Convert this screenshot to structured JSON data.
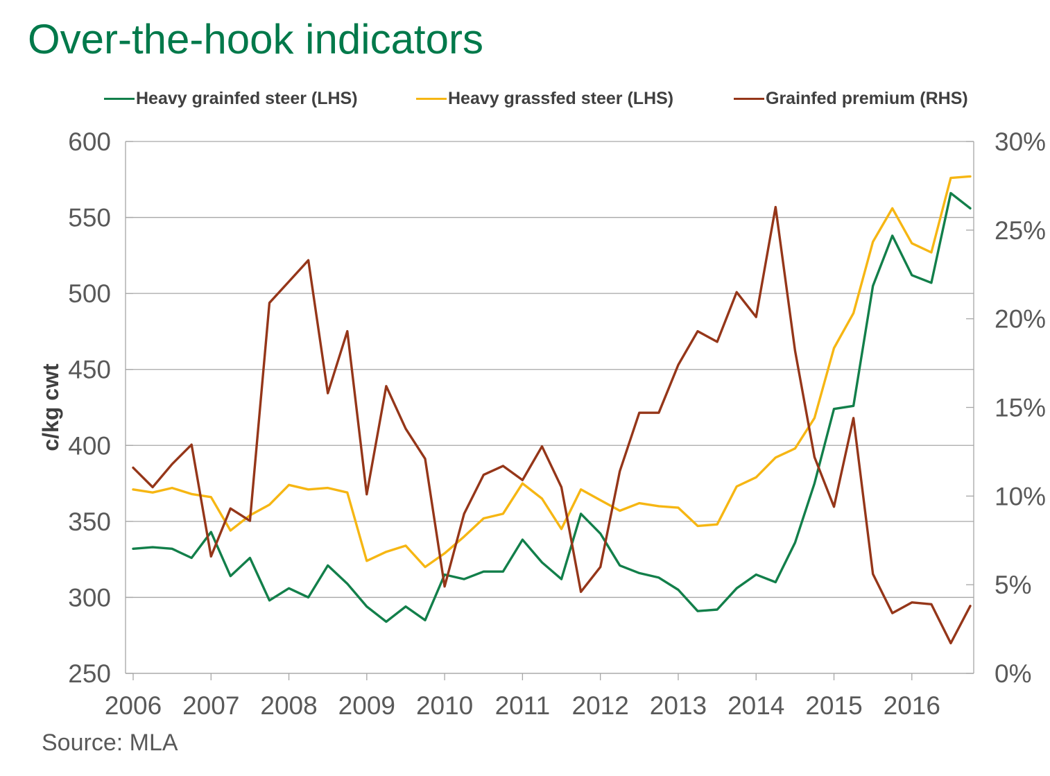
{
  "title": "Over-the-hook indicators",
  "source": "Source: MLA",
  "colors": {
    "title": "#00794a",
    "grid": "#a6a6a6",
    "text": "#595959"
  },
  "chart_data": {
    "type": "line",
    "title": "Over-the-hook indicators",
    "ylabel": "c/kg cwt",
    "y2label": "",
    "ylim": [
      250,
      600
    ],
    "y2lim": [
      0,
      30
    ],
    "yticks": [
      "250",
      "300",
      "350",
      "400",
      "450",
      "500",
      "550",
      "600"
    ],
    "y2ticks": [
      "0%",
      "5%",
      "10%",
      "15%",
      "20%",
      "25%",
      "30%"
    ],
    "xlim": [
      2006,
      2016.75
    ],
    "xticks": [
      "2006",
      "2007",
      "2008",
      "2009",
      "2010",
      "2011",
      "2012",
      "2013",
      "2014",
      "2015",
      "2016"
    ],
    "grid": true,
    "legend_position": "top",
    "x": [
      2006.0,
      2006.25,
      2006.5,
      2006.75,
      2007.0,
      2007.25,
      2007.5,
      2007.75,
      2008.0,
      2008.25,
      2008.5,
      2008.75,
      2009.0,
      2009.25,
      2009.5,
      2009.75,
      2010.0,
      2010.25,
      2010.5,
      2010.75,
      2011.0,
      2011.25,
      2011.5,
      2011.75,
      2012.0,
      2012.25,
      2012.5,
      2012.75,
      2013.0,
      2013.25,
      2013.5,
      2013.75,
      2014.0,
      2014.25,
      2014.5,
      2014.75,
      2015.0,
      2015.25,
      2015.5,
      2015.75,
      2016.0,
      2016.25,
      2016.5,
      2016.75
    ],
    "series": [
      {
        "name": "Heavy grainfed steer (LHS)",
        "axis": "left",
        "color": "#127f4a",
        "values": [
          332,
          333,
          332,
          326,
          343,
          314,
          326,
          298,
          306,
          300,
          321,
          309,
          294,
          284,
          294,
          285,
          315,
          312,
          317,
          317,
          338,
          323,
          312,
          355,
          342,
          321,
          316,
          313,
          305,
          291,
          292,
          306,
          315,
          310,
          336,
          375,
          424,
          426,
          505,
          538,
          512,
          507,
          566,
          556
        ]
      },
      {
        "name": "Heavy grassfed steer (LHS)",
        "axis": "left",
        "color": "#f6b613",
        "values": [
          371,
          369,
          372,
          368,
          366,
          344,
          354,
          361,
          374,
          371,
          372,
          369,
          324,
          330,
          334,
          320,
          329,
          340,
          352,
          355,
          375,
          365,
          345,
          371,
          364,
          357,
          362,
          360,
          359,
          347,
          348,
          373,
          379,
          392,
          398,
          418,
          464,
          487,
          534,
          556,
          533,
          527,
          576,
          577
        ]
      },
      {
        "name": "Grainfed premium (RHS)",
        "axis": "right",
        "color": "#953619",
        "values": [
          11.6,
          10.5,
          11.8,
          12.9,
          6.6,
          9.3,
          8.6,
          20.9,
          22.1,
          23.3,
          15.8,
          19.3,
          10.1,
          16.2,
          13.8,
          12.1,
          4.9,
          9.0,
          11.2,
          11.7,
          10.9,
          12.8,
          10.5,
          4.6,
          6.0,
          11.4,
          14.7,
          14.7,
          17.4,
          19.3,
          18.7,
          21.5,
          20.1,
          26.3,
          18.2,
          12.2,
          9.4,
          14.4,
          5.6,
          3.4,
          4.0,
          3.9,
          1.7,
          3.8
        ]
      }
    ]
  }
}
